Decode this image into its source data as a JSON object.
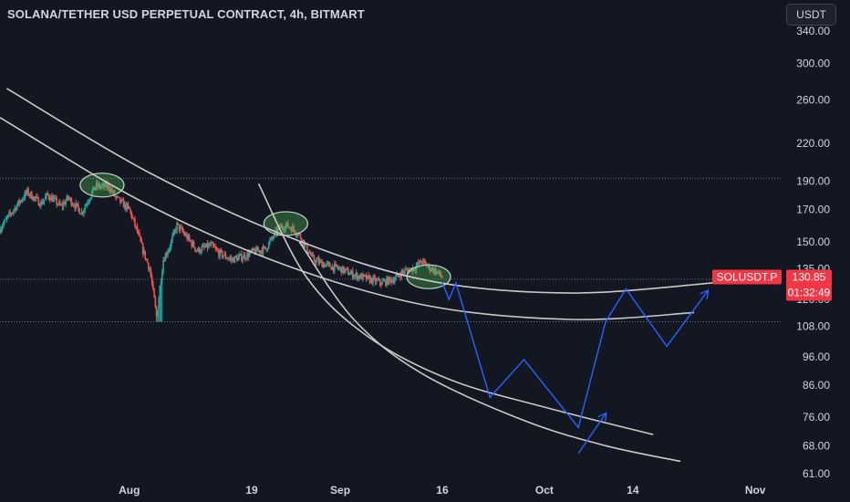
{
  "header": {
    "title": "SOLANA/TETHER USD PERPETUAL CONTRACT, 4h, BITMART",
    "currency_button": "USDT"
  },
  "colors": {
    "background": "#131722",
    "candle_up": "#26a69a",
    "candle_down": "#ef5350",
    "arc_line": "#c9c9c9",
    "projection": "#2962ff",
    "highlight": "#4caf50",
    "price_tag": "#f23645",
    "axis_text": "#d1d4dc"
  },
  "chart_data": {
    "type": "candlestick",
    "timeframe": "4h",
    "y_scale": "log",
    "ylim": [
      59,
      350
    ],
    "y_ticks": [
      "340.00",
      "300.00",
      "260.00",
      "220.00",
      "190.00",
      "170.00",
      "150.00",
      "135.00",
      "120.00",
      "108.00",
      "96.00",
      "86.00",
      "76.00",
      "68.00",
      "61.00"
    ],
    "y_tick_values": [
      340,
      300,
      260,
      220,
      190,
      170,
      150,
      135,
      120,
      108,
      96,
      86,
      76,
      68,
      61
    ],
    "x_ticks": [
      "Aug",
      "19",
      "Sep",
      "16",
      "Oct",
      "14",
      "Nov"
    ],
    "x_tick_dates": [
      "2024-08-01",
      "2024-08-19",
      "2024-09-01",
      "2024-09-16",
      "2024-10-01",
      "2024-10-14",
      "2024-11-01"
    ],
    "xlim": [
      "2024-07-13",
      "2024-11-05"
    ],
    "horizontal_levels": [
      192,
      129.8,
      110
    ],
    "price_series": [
      [
        "2024-07-13",
        158
      ],
      [
        "2024-07-15",
        170
      ],
      [
        "2024-07-17",
        182
      ],
      [
        "2024-07-19",
        174
      ],
      [
        "2024-07-20",
        180
      ],
      [
        "2024-07-22",
        172
      ],
      [
        "2024-07-23",
        178
      ],
      [
        "2024-07-25",
        168
      ],
      [
        "2024-07-27",
        186
      ],
      [
        "2024-07-29",
        186
      ],
      [
        "2024-07-30",
        178
      ],
      [
        "2024-08-01",
        170
      ],
      [
        "2024-08-02",
        158
      ],
      [
        "2024-08-03",
        145
      ],
      [
        "2024-08-04",
        135
      ],
      [
        "2024-08-05",
        112
      ],
      [
        "2024-08-06",
        140
      ],
      [
        "2024-08-07",
        148
      ],
      [
        "2024-08-08",
        160
      ],
      [
        "2024-08-09",
        155
      ],
      [
        "2024-08-11",
        145
      ],
      [
        "2024-08-13",
        148
      ],
      [
        "2024-08-14",
        144
      ],
      [
        "2024-08-16",
        140
      ],
      [
        "2024-08-18",
        142
      ],
      [
        "2024-08-19",
        144
      ],
      [
        "2024-08-21",
        146
      ],
      [
        "2024-08-22",
        152
      ],
      [
        "2024-08-23",
        158
      ],
      [
        "2024-08-24",
        160
      ],
      [
        "2024-08-25",
        158
      ],
      [
        "2024-08-26",
        154
      ],
      [
        "2024-08-28",
        140
      ],
      [
        "2024-08-30",
        137
      ],
      [
        "2024-09-01",
        135
      ],
      [
        "2024-09-03",
        132
      ],
      [
        "2024-09-05",
        130
      ],
      [
        "2024-09-07",
        128
      ],
      [
        "2024-09-09",
        130
      ],
      [
        "2024-09-10",
        133
      ],
      [
        "2024-09-12",
        136
      ],
      [
        "2024-09-13",
        139
      ],
      [
        "2024-09-14",
        136
      ],
      [
        "2024-09-15",
        134
      ],
      [
        "2024-09-16",
        131
      ]
    ],
    "resistance_arcs": [
      [
        [
          "2024-07-14",
          272
        ],
        [
          "2024-08-04",
          196
        ],
        [
          "2024-08-25",
          152
        ],
        [
          "2024-09-14",
          129
        ],
        [
          "2024-10-05",
          123
        ],
        [
          "2024-10-26",
          128
        ]
      ],
      [
        [
          "2024-07-13",
          243
        ],
        [
          "2024-08-03",
          175
        ],
        [
          "2024-08-24",
          137
        ],
        [
          "2024-09-14",
          117
        ],
        [
          "2024-10-05",
          111
        ],
        [
          "2024-10-23",
          114
        ]
      ],
      [
        [
          "2024-08-20",
          188
        ],
        [
          "2024-08-27",
          131
        ],
        [
          "2024-09-05",
          104
        ],
        [
          "2024-09-17",
          88
        ],
        [
          "2024-10-01",
          79
        ],
        [
          "2024-10-17",
          71
        ]
      ],
      [
        [
          "2024-08-26",
          150
        ],
        [
          "2024-09-03",
          111
        ],
        [
          "2024-09-13",
          90
        ],
        [
          "2024-09-28",
          75
        ],
        [
          "2024-10-10",
          68
        ],
        [
          "2024-10-21",
          64
        ]
      ]
    ],
    "projected_path": [
      [
        "2024-09-16",
        128
      ],
      [
        "2024-09-17",
        120
      ],
      [
        "2024-09-18",
        128
      ],
      [
        "2024-09-23",
        82
      ],
      [
        "2024-09-28",
        95
      ],
      [
        "2024-10-06",
        73
      ],
      [
        "2024-10-10",
        110
      ],
      [
        "2024-10-13",
        125
      ],
      [
        "2024-10-19",
        100
      ],
      [
        "2024-10-25",
        124
      ]
    ],
    "projected_path_2": [
      [
        "2024-10-06",
        66
      ],
      [
        "2024-10-10",
        77
      ]
    ],
    "highlight_zones": [
      {
        "date": "2024-07-28",
        "price": 187
      },
      {
        "date": "2024-08-24",
        "price": 161
      },
      {
        "date": "2024-09-14",
        "price": 131
      }
    ],
    "last_price": {
      "symbol": "SOLUSDT.P",
      "price": "130.85",
      "countdown": "01:32:49",
      "value": 130.85
    }
  }
}
